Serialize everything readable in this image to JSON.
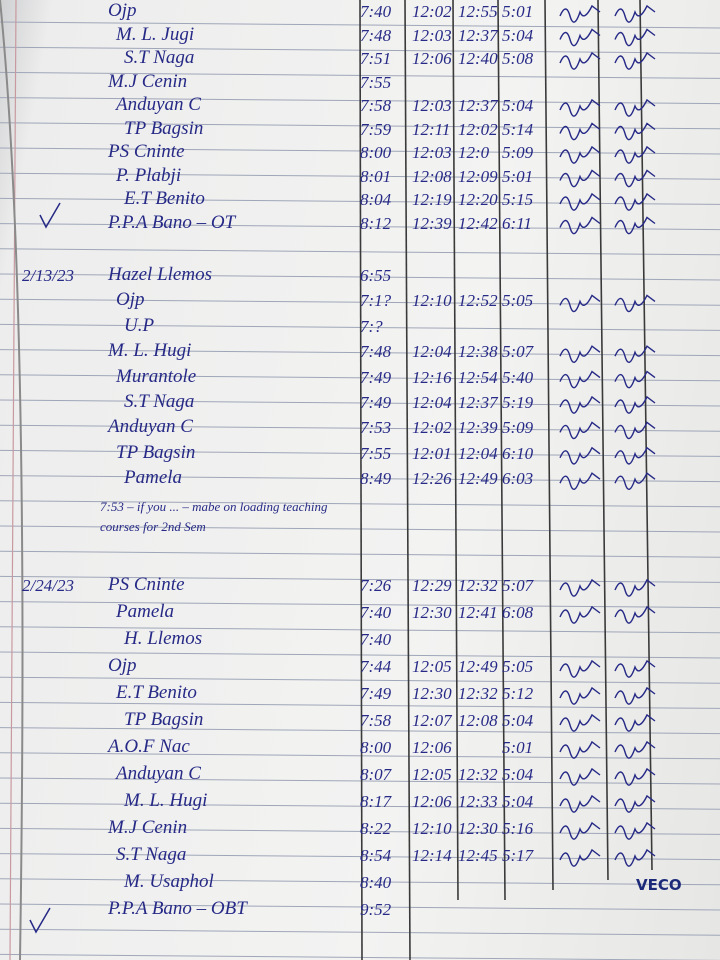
{
  "sections": [
    {
      "rows": [
        {
          "name": "Ojp",
          "times": [
            "7:40",
            "12:02",
            "12:55",
            "5:01"
          ]
        },
        {
          "name": "M. L. Jugi",
          "times": [
            "7:48",
            "12:03",
            "12:37",
            "5:04"
          ]
        },
        {
          "name": "S.T Naga",
          "times": [
            "7:51",
            "12:06",
            "12:40",
            "5:08"
          ]
        },
        {
          "name": "M.J Cenin",
          "times": [
            "7:55"
          ]
        },
        {
          "name": "Anduyan C",
          "times": [
            "7:58",
            "12:03",
            "12:37",
            "5:04"
          ]
        },
        {
          "name": "TP Bagsin",
          "times": [
            "7:59",
            "12:11",
            "12:02",
            "5:14"
          ]
        },
        {
          "name": "PS Cninte",
          "times": [
            "8:00",
            "12:03",
            "12:0",
            "5:09"
          ]
        },
        {
          "name": "P. Plabji",
          "times": [
            "8:01",
            "12:08",
            "12:09",
            "5:01"
          ]
        },
        {
          "name": "E.T Benito",
          "times": [
            "8:04",
            "12:19",
            "12:20",
            "5:15"
          ]
        },
        {
          "name": "P.P.A Bano – OT",
          "times": [
            "8:12",
            "12:39",
            "12:42",
            "6:11"
          ]
        }
      ]
    },
    {
      "date": "2/13/23",
      "rows": [
        {
          "name": "Hazel Llemos",
          "times": [
            "6:55"
          ]
        },
        {
          "name": "Ojp",
          "times": [
            "7:1?",
            "12:10",
            "12:52",
            "5:05"
          ]
        },
        {
          "name": "U.P",
          "times": [
            "7:?"
          ]
        },
        {
          "name": "M. L. Hugi",
          "times": [
            "7:48",
            "12:04",
            "12:38",
            "5:07"
          ]
        },
        {
          "name": "Murantole",
          "times": [
            "7:49",
            "12:16",
            "12:54",
            "5:40"
          ]
        },
        {
          "name": "S.T Naga",
          "times": [
            "7:49",
            "12:04",
            "12:37",
            "5:19"
          ]
        },
        {
          "name": "Anduyan C",
          "times": [
            "7:53",
            "12:02",
            "12:39",
            "5:09"
          ]
        },
        {
          "name": "TP Bagsin",
          "times": [
            "7:55",
            "12:01",
            "12:04",
            "6:10"
          ]
        },
        {
          "name": "Pamela",
          "times": [
            "8:49",
            "12:26",
            "12:49",
            "6:03"
          ]
        }
      ],
      "note": "7:53 – if you ... – mabe on loading teaching courses for 2nd Sem"
    },
    {
      "date": "2/24/23",
      "rows": [
        {
          "name": "PS Cninte",
          "times": [
            "7:26",
            "12:29",
            "12:32",
            "5:07"
          ]
        },
        {
          "name": "Pamela",
          "times": [
            "7:40",
            "12:30",
            "12:41",
            "6:08"
          ]
        },
        {
          "name": "H. Llemos",
          "times": [
            "7:40"
          ]
        },
        {
          "name": "Ojp",
          "times": [
            "7:44",
            "12:05",
            "12:49",
            "5:05"
          ]
        },
        {
          "name": "E.T Benito",
          "times": [
            "7:49",
            "12:30",
            "12:32",
            "5:12"
          ]
        },
        {
          "name": "TP Bagsin",
          "times": [
            "7:58",
            "12:07",
            "12:08",
            "5:04"
          ]
        },
        {
          "name": "A.O.F Nac",
          "times": [
            "8:00",
            "12:06",
            null,
            "5:01"
          ]
        },
        {
          "name": "Anduyan C",
          "times": [
            "8:07",
            "12:05",
            "12:32",
            "5:04"
          ]
        },
        {
          "name": "M. L. Hugi",
          "times": [
            "8:17",
            "12:06",
            "12:33",
            "5:04"
          ]
        },
        {
          "name": "M.J Cenin",
          "times": [
            "8:22",
            "12:10",
            "12:30",
            "5:16"
          ]
        },
        {
          "name": "S.T Naga",
          "times": [
            "8:54",
            "12:14",
            "12:45",
            "5:17"
          ]
        },
        {
          "name": "M. Usaphol",
          "times": [
            "8:40"
          ]
        },
        {
          "name": "P.P.A Bano – OBT",
          "times": [
            "9:52"
          ]
        }
      ]
    }
  ],
  "stamp": "VECO"
}
